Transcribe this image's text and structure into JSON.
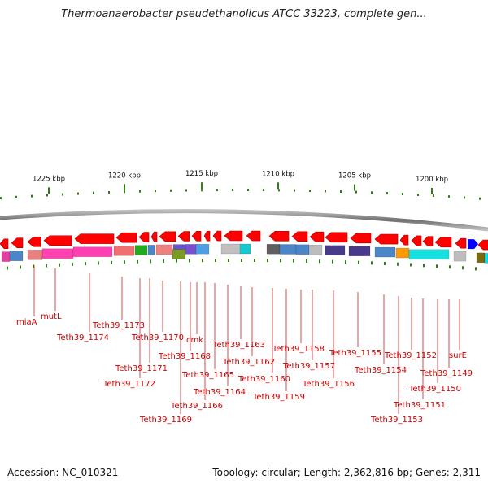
{
  "title": "Thermoanaerobacter pseudethanolicus ATCC 33223, complete gen...",
  "footer": {
    "accession": "Accession: NC_010321",
    "summary": "Topology: circular; Length: 2,362,816 bp; Genes: 2,311"
  },
  "scale_ticks": [
    "1225 kbp",
    "1220 kbp",
    "1215 kbp",
    "1210 kbp",
    "1205 kbp",
    "1200 kbp"
  ],
  "gene_labels": [
    "miaA",
    "mutL",
    "Teth39_1174",
    "Teth39_1173",
    "Teth39_1172",
    "Teth39_1171",
    "Teth39_1170",
    "Teth39_1169",
    "Teth39_1168",
    "cmk",
    "Teth39_1166",
    "Teth39_1165",
    "Teth39_1164",
    "Teth39_1163",
    "Teth39_1162",
    "Teth39_1160",
    "Teth39_1159",
    "Teth39_1158",
    "Teth39_1157",
    "Teth39_1156",
    "Teth39_1155",
    "Teth39_1154",
    "Teth39_1153",
    "Teth39_1152",
    "Teth39_1151",
    "Teth39_1150",
    "Teth39_1149",
    "surE"
  ],
  "colors": {
    "gene_arrow": "#ff0000",
    "forward_gene": "#0000ff",
    "label": "#cc0000",
    "backbone": "#888888",
    "tick": "#2e7d12"
  }
}
